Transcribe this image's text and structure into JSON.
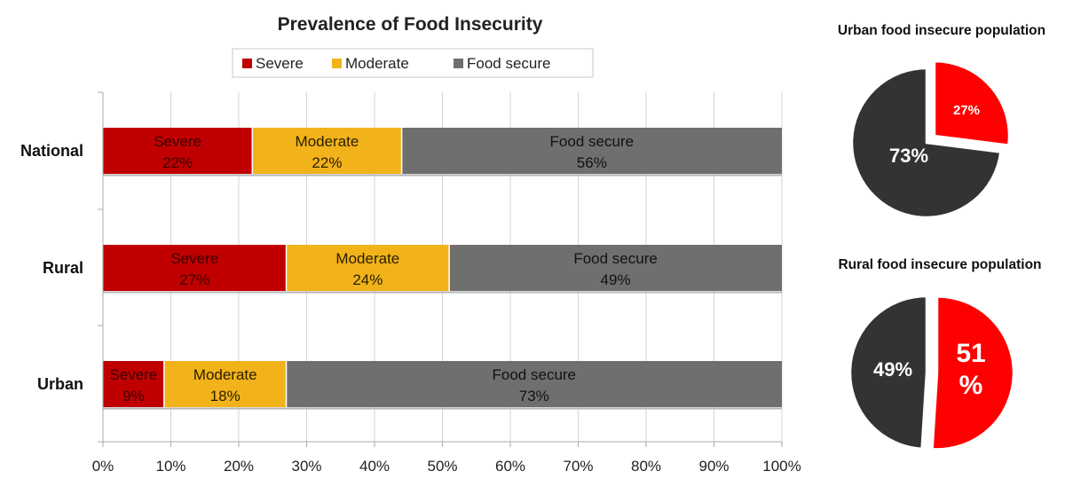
{
  "chart_data": [
    {
      "type": "bar",
      "orientation": "horizontal",
      "stacked": true,
      "title": "Prevalence of Food Insecurity",
      "categories": [
        "National",
        "Rural",
        "Urban"
      ],
      "series": [
        {
          "name": "Severe",
          "values": [
            22,
            27,
            9
          ],
          "color": "#c00000"
        },
        {
          "name": "Moderate",
          "values": [
            22,
            24,
            18
          ],
          "color": "#f2b21a"
        },
        {
          "name": "Food secure",
          "values": [
            56,
            49,
            73
          ],
          "color": "#6f6f6f"
        }
      ],
      "data_labels": [
        [
          "22%",
          "22%",
          "56%"
        ],
        [
          "27%",
          "24%",
          "49%"
        ],
        [
          "9%",
          "18%",
          "73%"
        ]
      ],
      "x_ticks": [
        "0%",
        "10%",
        "20%",
        "30%",
        "40%",
        "50%",
        "60%",
        "70%",
        "80%",
        "90%",
        "100%"
      ],
      "xlim": [
        0,
        100
      ],
      "grid": true,
      "legend": "top"
    },
    {
      "type": "pie",
      "title": "Urban food insecure population",
      "slices": [
        {
          "value": 27,
          "label": "27%",
          "color": "#ff0000",
          "exploded": true
        },
        {
          "value": 73,
          "label": "73%",
          "color": "#333333"
        }
      ]
    },
    {
      "type": "pie",
      "title": "Rural food insecure population",
      "slices": [
        {
          "value": 51,
          "label": "51 %",
          "color": "#ff0000",
          "exploded": true
        },
        {
          "value": 49,
          "label": "49%",
          "color": "#333333"
        }
      ]
    }
  ]
}
